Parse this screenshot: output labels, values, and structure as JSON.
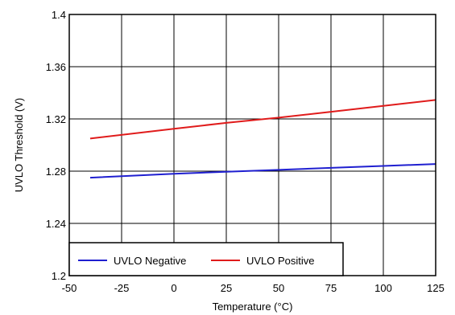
{
  "chart_data": {
    "type": "line",
    "title": "",
    "xlabel": "Temperature (°C)",
    "ylabel": "UVLO Threshold (V)",
    "xlim": [
      -50,
      125
    ],
    "ylim": [
      1.2,
      1.4
    ],
    "xticks": [
      "-50",
      "-25",
      "0",
      "25",
      "50",
      "75",
      "100",
      "125"
    ],
    "yticks": [
      "1.2",
      "1.24",
      "1.28",
      "1.32",
      "1.36",
      "1.4"
    ],
    "grid": true,
    "legend_position": "bottom-left",
    "series": [
      {
        "name": "UVLO Negative",
        "color": "#1f1fd0",
        "x": [
          -40,
          0,
          25,
          50,
          75,
          100,
          125
        ],
        "y": [
          1.275,
          1.278,
          1.2795,
          1.281,
          1.2825,
          1.284,
          1.2855
        ]
      },
      {
        "name": "UVLO Positive",
        "color": "#e01b1b",
        "x": [
          -40,
          0,
          25,
          50,
          75,
          100,
          125
        ],
        "y": [
          1.305,
          1.3125,
          1.317,
          1.321,
          1.3255,
          1.33,
          1.3345
        ]
      }
    ]
  }
}
